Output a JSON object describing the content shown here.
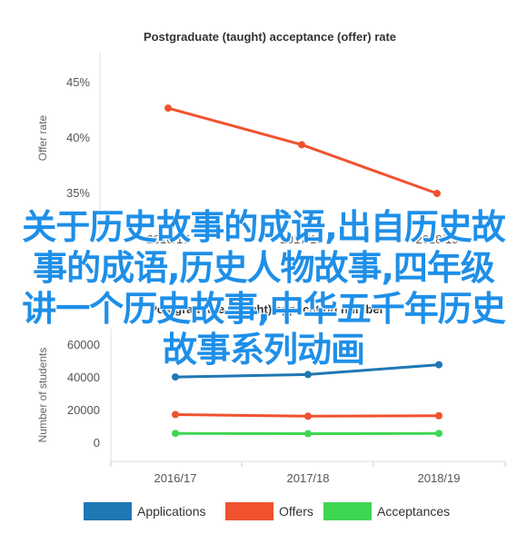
{
  "chart_data": [
    {
      "type": "line",
      "title": "Postgraduate (taught) acceptance (offer) rate",
      "ylabel": "Offer rate",
      "xlabel": "",
      "categories": [
        "2016/17",
        "2017/18",
        "2018/19"
      ],
      "y_ticks": [
        "35%",
        "40%",
        "45%"
      ],
      "ylim": [
        35,
        45
      ],
      "grid": false,
      "series": [
        {
          "values": [
            42.7,
            39.4,
            35.0
          ],
          "color": "#f0522f"
        }
      ]
    },
    {
      "type": "line",
      "title": "Postgraduate (taught) application numbers",
      "ylabel": "Number of students",
      "xlabel": "",
      "categories": [
        "2016/17",
        "2017/18",
        "2018/19"
      ],
      "y_ticks": [
        "0",
        "20000",
        "40000",
        "60000"
      ],
      "ylim": [
        0,
        60000
      ],
      "grid": false,
      "legend_position": "bottom",
      "series": [
        {
          "name": "Applications",
          "values": [
            40500,
            42000,
            48000
          ],
          "color": "#1f77b4"
        },
        {
          "name": "Offers",
          "values": [
            17500,
            16500,
            16800
          ],
          "color": "#f0522f"
        },
        {
          "name": "Acceptances",
          "values": [
            6000,
            5800,
            6000
          ],
          "color": "#3fd652"
        }
      ]
    }
  ],
  "overlay": {
    "lines": [
      "关于历史故事的成语,出自历史故",
      "事的成语,历史人物故事,四年级",
      "讲一个历史故事,中华五千年历史",
      "故事系列动画"
    ],
    "color": "#1e8fe8"
  }
}
